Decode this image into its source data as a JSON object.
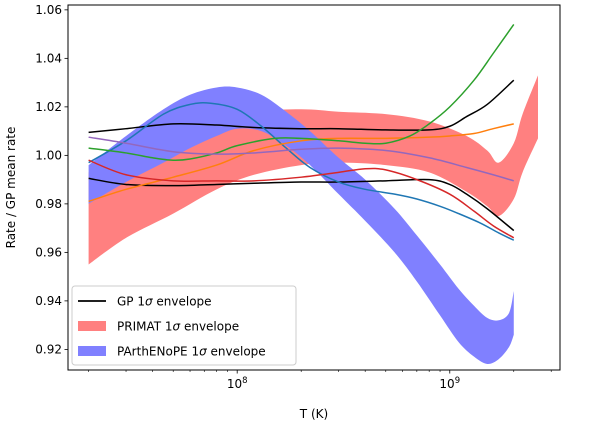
{
  "chart_data": {
    "type": "line",
    "xlabel": "T (K)",
    "ylabel": "Rate / GP mean rate",
    "xscale": "log",
    "xlim": [
      16000000,
      3300000000
    ],
    "ylim": [
      0.9115,
      1.062
    ],
    "x_ticks": [
      {
        "value": 100000000,
        "base": "10",
        "exp": "8"
      },
      {
        "value": 1000000000,
        "base": "10",
        "exp": "9"
      }
    ],
    "y_ticks": [
      0.92,
      0.94,
      0.96,
      0.98,
      1.0,
      1.02,
      1.04,
      1.06
    ],
    "y_tick_labels": [
      "0.92",
      "0.94",
      "0.96",
      "0.98",
      "1.00",
      "1.02",
      "1.04",
      "1.06"
    ],
    "legend": {
      "position": "lower-left",
      "entries": [
        {
          "pre": "GP 1",
          "sym": "σ",
          "post": " envelope",
          "color": "#000000",
          "kind": "line"
        },
        {
          "pre": "PRIMAT 1",
          "sym": "σ",
          "post": " envelope",
          "color": "#ff8080",
          "kind": "patch"
        },
        {
          "pre": "PArthENoPE 1",
          "sym": "σ",
          "post": " envelope",
          "color": "#8080ff",
          "kind": "patch"
        }
      ]
    },
    "bands": [
      {
        "color": "#ff8080",
        "x": [
          20000000,
          30000000,
          50000000,
          80000000,
          120000000,
          200000000,
          300000000,
          500000000,
          800000000,
          1200000000,
          1500000000,
          1700000000,
          2000000000,
          2200000000,
          2600000000
        ],
        "upper": [
          0.993,
          0.999,
          1.007,
          1.014,
          1.018,
          1.019,
          1.018,
          1.017,
          1.014,
          1.008,
          1.002,
          0.997,
          1.005,
          1.017,
          1.033
        ],
        "lower": [
          0.955,
          0.966,
          0.976,
          0.986,
          0.992,
          0.996,
          0.997,
          0.996,
          0.993,
          0.985,
          0.979,
          0.975,
          0.982,
          0.993,
          1.007
        ]
      },
      {
        "color": "#8080ff",
        "x": [
          20000000,
          30000000,
          45000000,
          60000000,
          80000000,
          100000000,
          130000000,
          170000000,
          220000000,
          300000000,
          400000000,
          550000000,
          700000000,
          900000000,
          1100000000,
          1300000000,
          1500000000,
          1700000000,
          1900000000,
          2000000000
        ],
        "upper": [
          0.996,
          1.008,
          1.019,
          1.025,
          1.028,
          1.028,
          1.025,
          1.018,
          1.01,
          0.999,
          0.99,
          0.978,
          0.967,
          0.955,
          0.945,
          0.938,
          0.933,
          0.932,
          0.935,
          0.944
        ],
        "lower": [
          0.98,
          0.989,
          0.997,
          1.003,
          1.008,
          1.011,
          1.01,
          1.004,
          0.996,
          0.984,
          0.973,
          0.96,
          0.948,
          0.934,
          0.923,
          0.917,
          0.914,
          0.916,
          0.921,
          0.926
        ]
      }
    ],
    "series": [
      {
        "color": "#000000",
        "x": [
          20000000,
          30000000,
          50000000,
          80000000,
          120000000,
          200000000,
          300000000,
          500000000,
          800000000,
          1000000000,
          1200000000,
          1500000000,
          2000000000
        ],
        "y": [
          1.0095,
          1.011,
          1.013,
          1.0125,
          1.0115,
          1.011,
          1.011,
          1.0105,
          1.0105,
          1.012,
          1.016,
          1.021,
          1.031
        ]
      },
      {
        "color": "#000000",
        "x": [
          20000000,
          30000000,
          50000000,
          80000000,
          120000000,
          200000000,
          300000000,
          500000000,
          800000000,
          1000000000,
          1200000000,
          1500000000,
          2000000000
        ],
        "y": [
          0.9905,
          0.988,
          0.9875,
          0.988,
          0.9885,
          0.989,
          0.989,
          0.9895,
          0.99,
          0.988,
          0.984,
          0.978,
          0.969
        ]
      },
      {
        "color": "#1f77b4",
        "x": [
          20000000,
          30000000,
          45000000,
          60000000,
          75000000,
          100000000,
          130000000,
          170000000,
          220000000,
          300000000,
          400000000,
          550000000,
          700000000,
          900000000,
          1100000000,
          1400000000,
          1700000000,
          2000000000
        ],
        "y": [
          0.997,
          1.006,
          1.017,
          1.021,
          1.0215,
          1.019,
          1.012,
          1.003,
          0.995,
          0.989,
          0.986,
          0.984,
          0.982,
          0.979,
          0.976,
          0.972,
          0.968,
          0.965
        ]
      },
      {
        "color": "#ff7f0e",
        "x": [
          20000000,
          30000000,
          50000000,
          80000000,
          120000000,
          200000000,
          300000000,
          500000000,
          800000000,
          1000000000,
          1300000000,
          1600000000,
          2000000000
        ],
        "y": [
          0.981,
          0.986,
          0.991,
          0.996,
          1.002,
          1.006,
          1.007,
          1.007,
          1.0075,
          1.008,
          1.009,
          1.011,
          1.013
        ]
      },
      {
        "color": "#2ca02c",
        "x": [
          20000000,
          30000000,
          40000000,
          50000000,
          60000000,
          80000000,
          100000000,
          150000000,
          200000000,
          300000000,
          400000000,
          500000000,
          650000000,
          800000000,
          1000000000,
          1300000000,
          1600000000,
          2000000000
        ],
        "y": [
          1.003,
          1.001,
          0.999,
          0.998,
          0.9985,
          1.001,
          1.004,
          1.007,
          1.007,
          1.006,
          1.005,
          1.005,
          1.008,
          1.013,
          1.02,
          1.031,
          1.042,
          1.054
        ]
      },
      {
        "color": "#d62728",
        "x": [
          20000000,
          30000000,
          50000000,
          80000000,
          120000000,
          200000000,
          300000000,
          400000000,
          500000000,
          700000000,
          1000000000,
          1300000000,
          1600000000,
          2000000000
        ],
        "y": [
          0.998,
          0.992,
          0.9895,
          0.9895,
          0.9895,
          0.991,
          0.993,
          0.9945,
          0.994,
          0.99,
          0.984,
          0.977,
          0.971,
          0.966
        ]
      },
      {
        "color": "#9467bd",
        "x": [
          20000000,
          30000000,
          50000000,
          80000000,
          120000000,
          200000000,
          300000000,
          500000000,
          800000000,
          1200000000,
          1600000000,
          2000000000
        ],
        "y": [
          1.0075,
          1.005,
          1.0015,
          1.0005,
          1.001,
          1.0025,
          1.003,
          1.002,
          0.999,
          0.995,
          0.992,
          0.9895
        ]
      }
    ]
  }
}
